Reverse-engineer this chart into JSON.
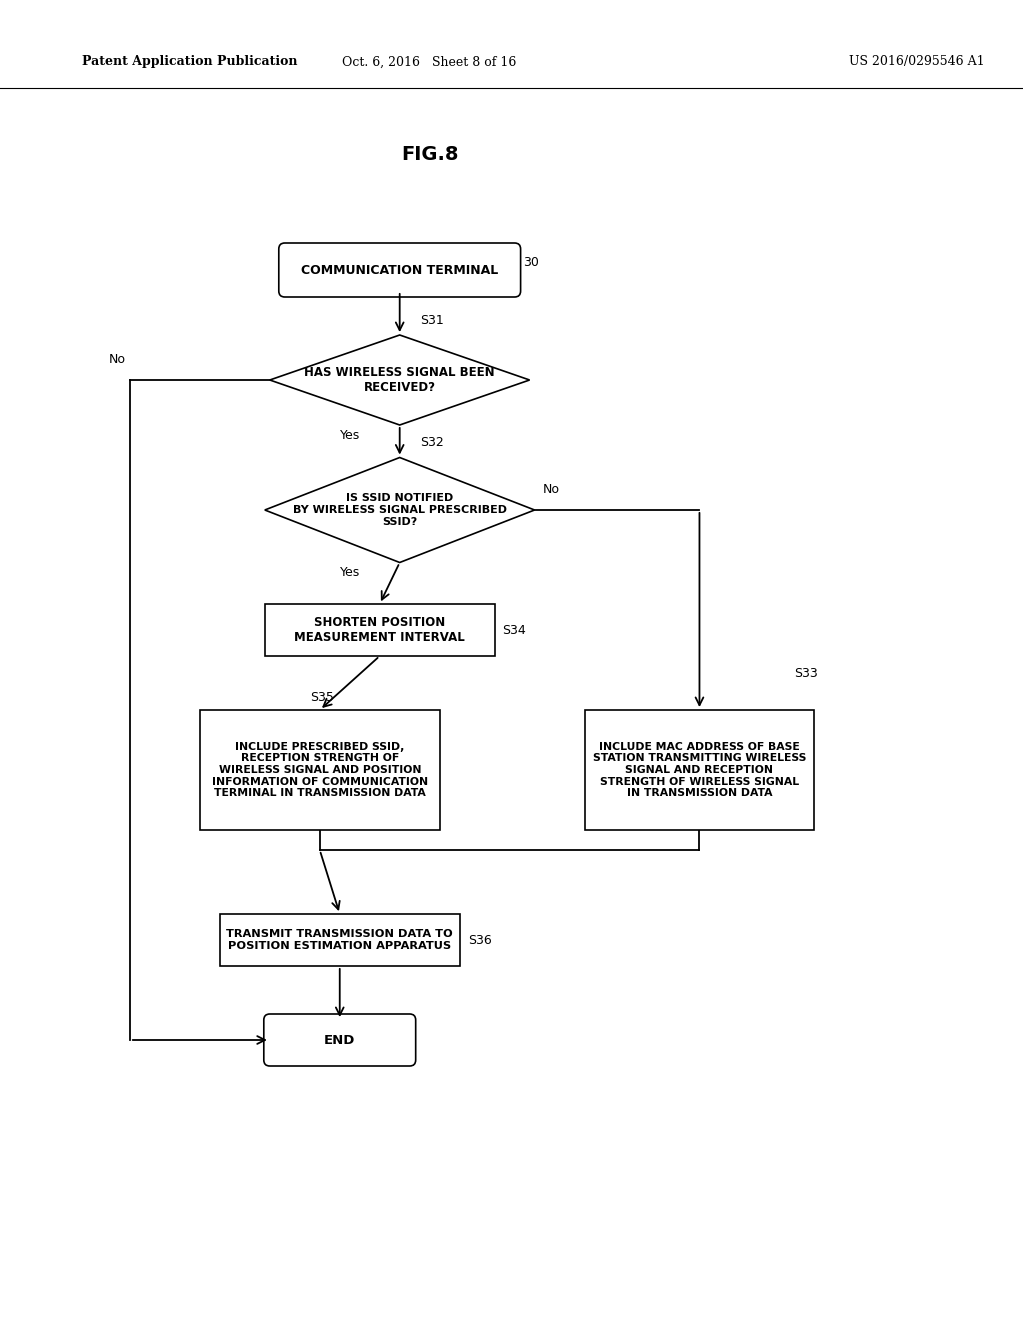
{
  "bg_color": "#ffffff",
  "header_left": "Patent Application Publication",
  "header_mid": "Oct. 6, 2016   Sheet 8 of 16",
  "header_right": "US 2016/0295546 A1",
  "fig_label": "FIG.8",
  "line_color": "#000000",
  "text_color": "#000000"
}
